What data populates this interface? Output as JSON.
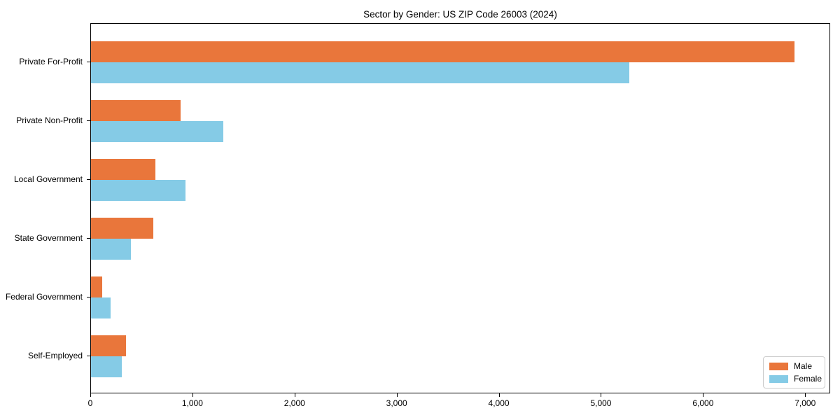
{
  "chart_data": {
    "type": "bar",
    "orientation": "horizontal",
    "title": "Sector by Gender: US ZIP Code 26003 (2024)",
    "categories": [
      "Private For-Profit",
      "Private Non-Profit",
      "Local Government",
      "State Government",
      "Federal Government",
      "Self-Employed"
    ],
    "series": [
      {
        "name": "Male",
        "color": "#e9763b",
        "values": [
          6900,
          880,
          630,
          610,
          110,
          340
        ]
      },
      {
        "name": "Female",
        "color": "#85cbe6",
        "values": [
          5280,
          1300,
          930,
          390,
          190,
          300
        ]
      }
    ],
    "xlabel": "",
    "ylabel": "",
    "xlim": [
      0,
      7245
    ],
    "xticks": [
      0,
      1000,
      2000,
      3000,
      4000,
      5000,
      6000,
      7000
    ],
    "xtick_labels": [
      "0",
      "1,000",
      "2,000",
      "3,000",
      "4,000",
      "5,000",
      "6,000",
      "7,000"
    ],
    "grid": false,
    "legend_position": "lower right"
  },
  "colors": {
    "axis": "#000000",
    "background": "#ffffff",
    "legend_border": "#cccccc"
  },
  "layout_numbers": {}
}
